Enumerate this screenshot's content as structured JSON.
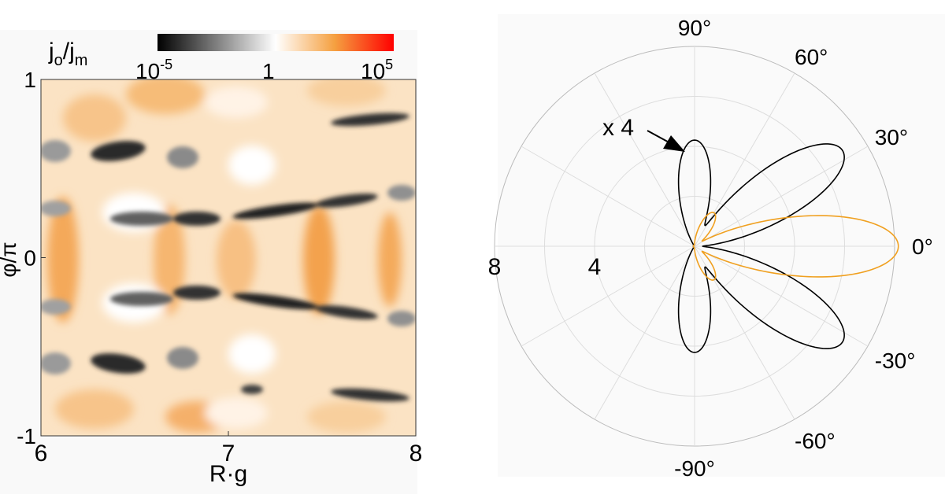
{
  "chart_data": [
    {
      "type": "heatmap",
      "xlabel": "R·g",
      "ylabel": "φ/π",
      "xlim": [
        6,
        8
      ],
      "ylim": [
        -1,
        1
      ],
      "x_ticks": [
        {
          "value": 6,
          "label": "6"
        },
        {
          "value": 7,
          "label": "7"
        },
        {
          "value": 8,
          "label": "8"
        }
      ],
      "y_ticks": [
        {
          "value": 1,
          "label": "1"
        },
        {
          "value": 0,
          "label": "0"
        },
        {
          "value": -1,
          "label": "-1"
        }
      ],
      "colorbar": {
        "label_main": "j",
        "label_sub1": "o",
        "label_slash": "/j",
        "label_sub2": "m",
        "scale": "log",
        "ticks": [
          {
            "mantissa": "10",
            "exponent": "-5",
            "value": 1e-05
          },
          {
            "mantissa": "1",
            "exponent": "",
            "value": 1
          },
          {
            "mantissa": "10",
            "exponent": "5",
            "value": 100000
          }
        ],
        "colors": [
          "#000000",
          "#ffffff",
          "#f5a040",
          "#ff0000"
        ]
      }
    },
    {
      "type": "polar",
      "radial_ticks": [
        {
          "value": 8,
          "label": "8"
        },
        {
          "value": 4,
          "label": "4"
        }
      ],
      "angle_labels": [
        {
          "deg": 90,
          "label": "90°"
        },
        {
          "deg": 60,
          "label": "60°"
        },
        {
          "deg": 30,
          "label": "30°"
        },
        {
          "deg": 0,
          "label": "0°"
        },
        {
          "deg": -30,
          "label": "-30°"
        },
        {
          "deg": -60,
          "label": "-60°"
        },
        {
          "deg": -90,
          "label": "-90°"
        }
      ],
      "rmax": 8,
      "annotation": "x 4",
      "series": [
        {
          "color": "#000000",
          "lobes": [
            {
              "center_deg": 90,
              "peak": 4.2
            },
            {
              "center_deg": 33,
              "peak": 7.0
            },
            {
              "center_deg": -33,
              "peak": 7.0
            },
            {
              "center_deg": -90,
              "peak": 4.2
            }
          ]
        },
        {
          "color": "#f0a020",
          "lobes": [
            {
              "center_deg": 0,
              "peak": 8.1
            },
            {
              "center_deg": 60,
              "peak": 1.5
            },
            {
              "center_deg": -60,
              "peak": 1.5
            }
          ]
        }
      ]
    }
  ]
}
